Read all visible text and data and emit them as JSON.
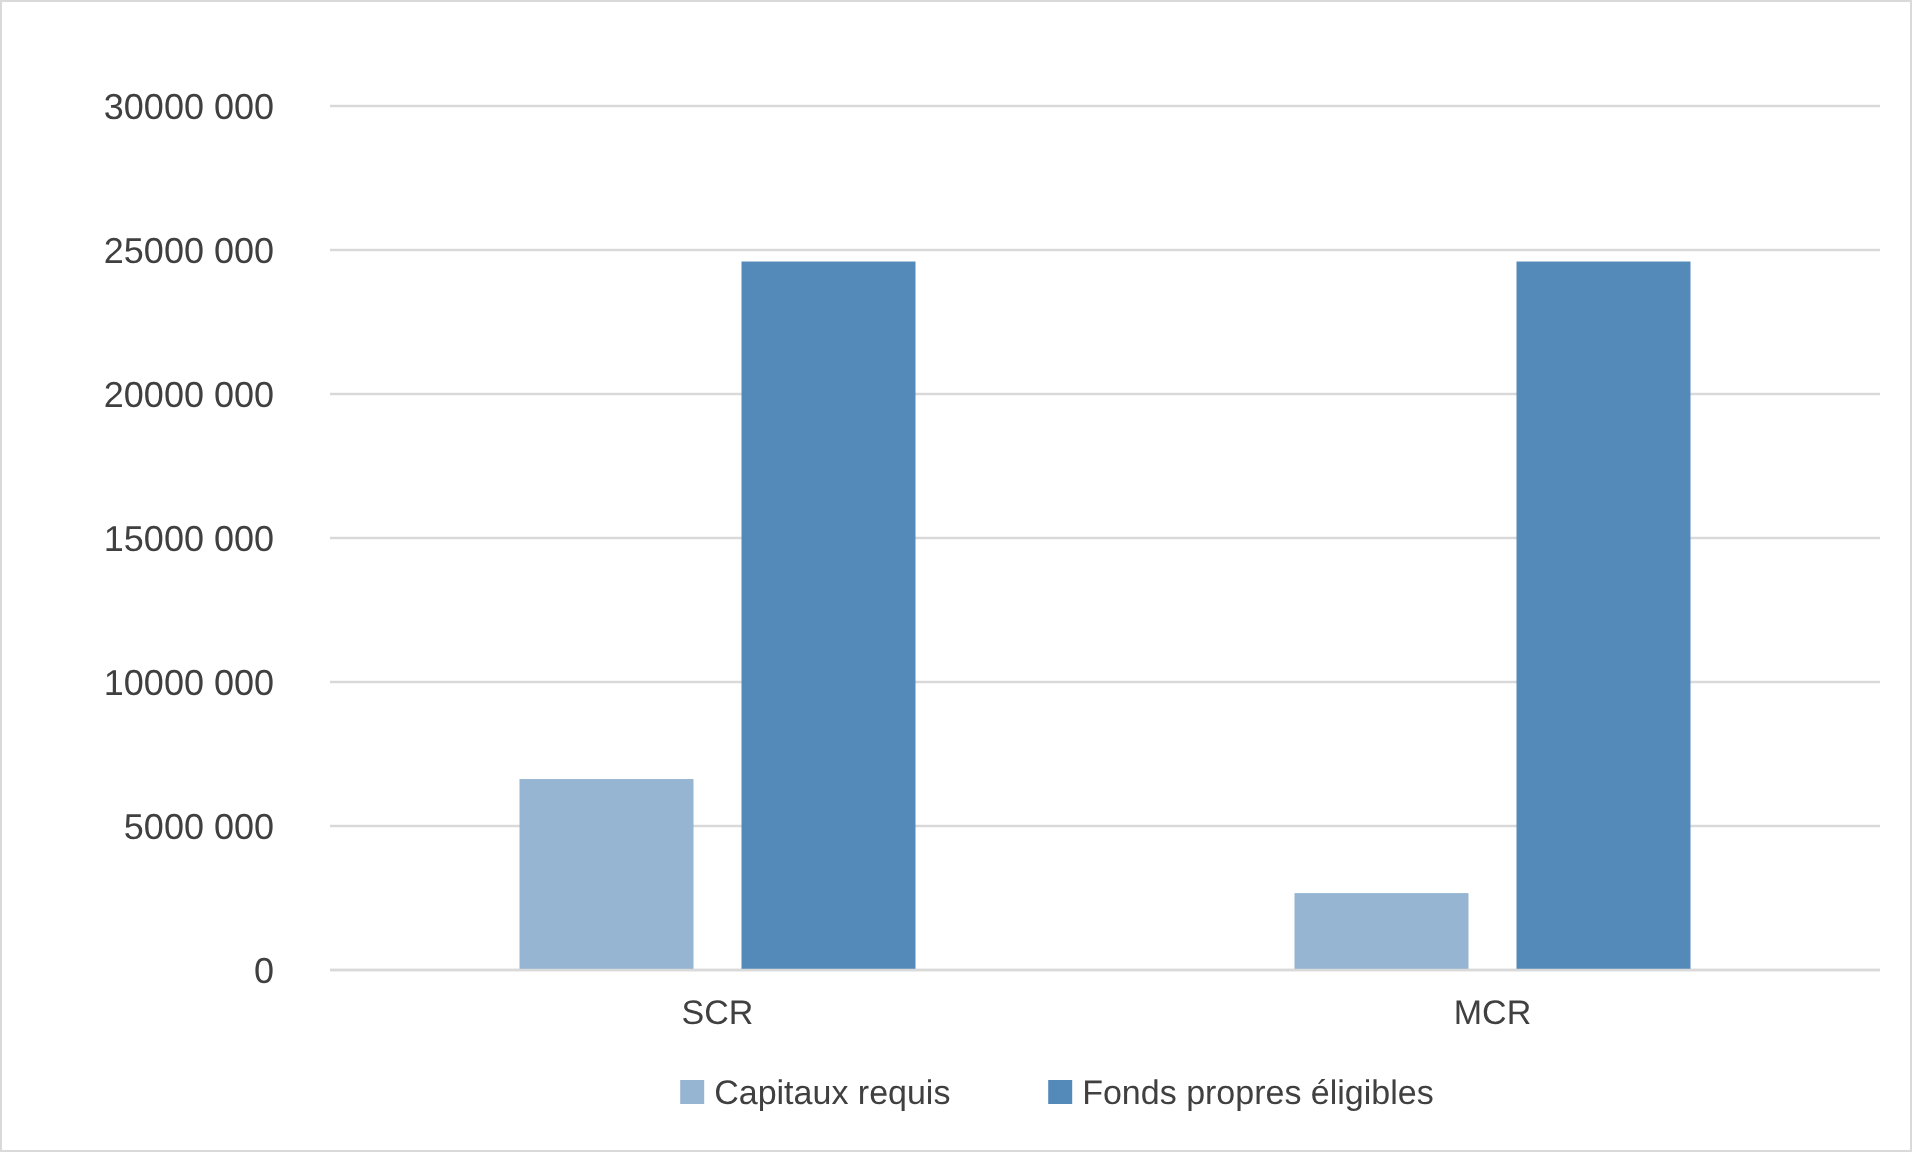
{
  "chart_data": {
    "type": "bar",
    "categories": [
      "SCR",
      "MCR"
    ],
    "series": [
      {
        "name": "Capitaux requis",
        "color": "#95b5d2",
        "values": [
          6630000,
          2670000
        ]
      },
      {
        "name": "Fonds propres éligibles",
        "color": "#548ab9",
        "values": [
          24600000,
          24600000
        ]
      }
    ],
    "ylim": [
      0,
      30000000
    ],
    "yticks": [
      0,
      {
        "value": 5000000,
        "label": "5000 000"
      },
      {
        "value": 10000000,
        "label": "10000 000"
      },
      {
        "value": 15000000,
        "label": "15000 000"
      },
      {
        "value": 20000000,
        "label": "20000 000"
      },
      {
        "value": 25000000,
        "label": "25000 000"
      },
      {
        "value": 30000000,
        "label": "30000 000"
      }
    ],
    "grid": "y",
    "legend": "bottom"
  }
}
